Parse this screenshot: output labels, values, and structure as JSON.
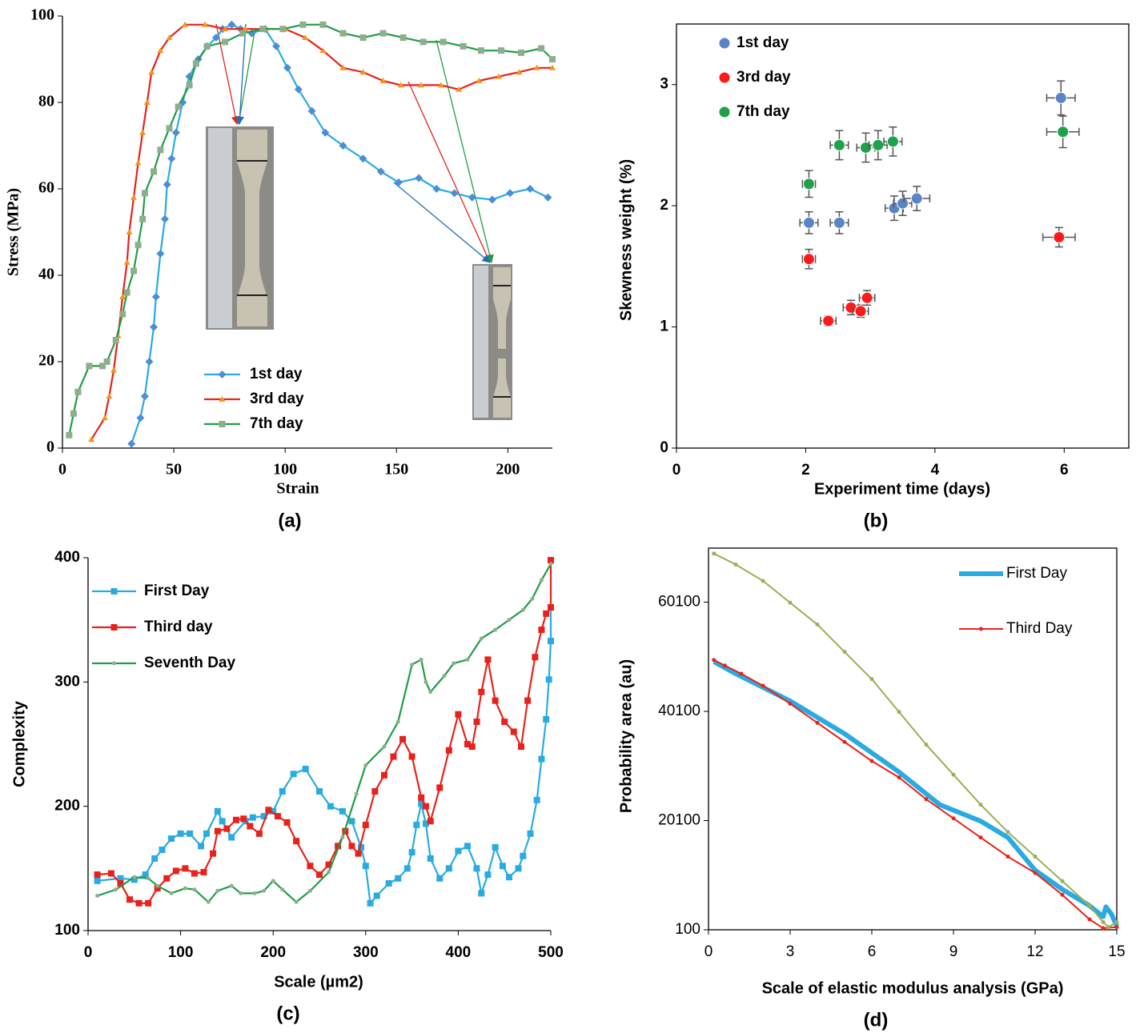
{
  "chart_data": [
    {
      "type": "line",
      "panel_label": "(a)",
      "xlabel": "Strain",
      "ylabel": "Stress (MPa)",
      "xlim": [
        0,
        220
      ],
      "xticks": [
        0,
        50,
        100,
        150,
        200
      ],
      "ylim": [
        0,
        100
      ],
      "yticks": [
        0,
        20,
        40,
        60,
        80,
        100
      ],
      "series": [
        {
          "name": "1st day",
          "color": "#29abe2",
          "marker": "diamond",
          "marker_color": "#4a8fd6",
          "x": [
            31,
            35,
            37,
            39,
            41,
            42,
            44,
            46,
            47,
            49,
            51,
            54,
            57,
            61,
            65,
            69,
            72,
            76,
            80,
            85,
            91,
            96,
            101,
            106,
            112,
            118,
            126,
            135,
            143,
            151,
            160,
            168,
            176,
            184,
            193,
            201,
            210,
            218
          ],
          "values": [
            1,
            7,
            12,
            20,
            28,
            35,
            45,
            53,
            61,
            67,
            73,
            80,
            86,
            90,
            93,
            95,
            97,
            98,
            97,
            96,
            97,
            93,
            88,
            83,
            78,
            73,
            70,
            67,
            64,
            61.5,
            62.5,
            60,
            59,
            58,
            57.5,
            59,
            60,
            58
          ]
        },
        {
          "name": "3rd day",
          "color": "#e8221b",
          "marker": "triangle",
          "marker_color": "#f7941d",
          "x": [
            13,
            19,
            21,
            23,
            25,
            27,
            29,
            30,
            32,
            34,
            36,
            38,
            40,
            44,
            48,
            55,
            64,
            73,
            82,
            91,
            100,
            109,
            117,
            126,
            135,
            144,
            152,
            161,
            170,
            178,
            187,
            196,
            205,
            213,
            220
          ],
          "values": [
            2,
            7,
            12,
            18,
            26,
            35,
            43,
            50,
            58,
            66,
            73,
            80,
            87,
            92,
            95,
            98,
            98,
            97,
            97,
            97,
            97,
            95,
            92,
            88,
            87,
            85,
            84,
            84,
            84,
            83,
            85,
            86,
            87,
            88,
            88
          ]
        },
        {
          "name": "7th day",
          "color": "#1e9e48",
          "marker": "square",
          "marker_color": "#8fae8c",
          "x": [
            3,
            5,
            7,
            12,
            18,
            20,
            24,
            27,
            29,
            32,
            34,
            36,
            37,
            41,
            44,
            48,
            52,
            57,
            60,
            65,
            73,
            81,
            90,
            99,
            108,
            117,
            126,
            135,
            144,
            153,
            162,
            171,
            180,
            188,
            197,
            206,
            215,
            220
          ],
          "values": [
            3,
            8,
            13,
            19,
            19,
            20,
            25,
            31,
            36,
            41,
            47,
            53,
            59,
            64,
            69,
            74,
            79,
            84,
            89,
            93,
            94,
            96,
            97,
            97,
            98,
            98,
            96,
            95,
            96,
            95,
            94,
            94,
            93,
            92,
            92,
            91.5,
            92.5,
            90
          ]
        }
      ]
    },
    {
      "type": "scatter",
      "panel_label": "(b)",
      "xlabel": "Experiment time (days)",
      "ylabel": "Skewness weight (%)",
      "xlim": [
        0,
        7
      ],
      "xticks": [
        0,
        2,
        4,
        6
      ],
      "ylim": [
        0,
        3.5
      ],
      "yticks": [
        0,
        1,
        2,
        3
      ],
      "series": [
        {
          "name": "1st day",
          "color": "#5b84c4",
          "x": [
            2.05,
            2.52,
            3.37,
            3.5,
            3.72,
            5.95
          ],
          "values": [
            1.86,
            1.86,
            1.98,
            2.02,
            2.06,
            2.89
          ],
          "xerr": [
            0.14,
            0.14,
            0.14,
            0.14,
            0.2,
            0.22
          ],
          "yerr": [
            0.09,
            0.09,
            0.1,
            0.1,
            0.1,
            0.14
          ]
        },
        {
          "name": "3rd day",
          "color": "#ff1a1a",
          "x": [
            2.05,
            2.35,
            2.7,
            2.85,
            2.95,
            5.92
          ],
          "values": [
            1.56,
            1.05,
            1.16,
            1.13,
            1.24,
            1.74
          ],
          "xerr": [
            0.1,
            0.12,
            0.12,
            0.12,
            0.12,
            0.25
          ],
          "yerr": [
            0.08,
            0.04,
            0.06,
            0.05,
            0.06,
            0.08
          ]
        },
        {
          "name": "7th day",
          "color": "#1ea14a",
          "x": [
            2.05,
            2.52,
            2.93,
            3.12,
            3.35,
            5.98
          ],
          "values": [
            2.18,
            2.5,
            2.48,
            2.5,
            2.53,
            2.61
          ],
          "xerr": [
            0.1,
            0.14,
            0.14,
            0.14,
            0.14,
            0.25
          ],
          "yerr": [
            0.11,
            0.12,
            0.12,
            0.12,
            0.12,
            0.13
          ]
        }
      ]
    },
    {
      "type": "line",
      "panel_label": "(c)",
      "xlabel": "Scale (µm2)",
      "ylabel": "Complexity",
      "xlim": [
        0,
        500
      ],
      "xticks": [
        0,
        100,
        200,
        300,
        400,
        500
      ],
      "ylim": [
        100,
        400
      ],
      "yticks": [
        100,
        200,
        300,
        400
      ],
      "series": [
        {
          "name": "First Day",
          "color": "#29abe2",
          "marker": "square",
          "marker_color": "#29abe2",
          "x": [
            10,
            35,
            50,
            62,
            72,
            80,
            90,
            100,
            110,
            122,
            128,
            140,
            145,
            155,
            170,
            178,
            190,
            200,
            210,
            222,
            235,
            250,
            262,
            275,
            285,
            295,
            300,
            305,
            312,
            325,
            335,
            345,
            350,
            355,
            360,
            365,
            370,
            380,
            390,
            400,
            410,
            420,
            425,
            432,
            440,
            448,
            455,
            465,
            470,
            478,
            485,
            490,
            495,
            498,
            500,
            500
          ],
          "values": [
            140,
            142,
            141,
            145,
            158,
            165,
            174,
            178,
            178,
            168,
            178,
            196,
            188,
            175,
            188,
            191,
            192,
            196,
            212,
            226,
            230,
            212,
            200,
            196,
            188,
            167,
            152,
            122,
            128,
            138,
            142,
            150,
            163,
            185,
            202,
            186,
            158,
            142,
            150,
            164,
            168,
            150,
            130,
            145,
            167,
            152,
            143,
            150,
            160,
            178,
            205,
            238,
            270,
            302,
            333,
            360
          ]
        },
        {
          "name": "Third day",
          "color": "#e8221b",
          "marker": "square",
          "marker_color": "#e8221b",
          "x": [
            10,
            25,
            35,
            45,
            55,
            65,
            75,
            85,
            95,
            105,
            115,
            125,
            135,
            140,
            150,
            160,
            168,
            175,
            185,
            195,
            205,
            215,
            225,
            240,
            250,
            260,
            270,
            278,
            285,
            292,
            300,
            310,
            320,
            330,
            340,
            350,
            360,
            365,
            370,
            380,
            390,
            400,
            410,
            415,
            420,
            425,
            432,
            440,
            450,
            460,
            468,
            475,
            483,
            490,
            495,
            500,
            500
          ],
          "values": [
            145,
            146,
            138,
            125,
            122,
            122,
            134,
            142,
            148,
            150,
            146,
            147,
            162,
            180,
            182,
            189,
            190,
            184,
            178,
            197,
            192,
            187,
            172,
            152,
            145,
            153,
            168,
            180,
            168,
            162,
            185,
            212,
            225,
            240,
            254,
            240,
            207,
            200,
            188,
            215,
            245,
            274,
            250,
            248,
            268,
            292,
            318,
            285,
            268,
            260,
            248,
            285,
            320,
            342,
            355,
            360,
            398
          ]
        },
        {
          "name": "Seventh Day",
          "color": "#1e9e48",
          "marker": "dot",
          "marker_color": "#8fae8c",
          "x": [
            10,
            30,
            50,
            65,
            75,
            90,
            105,
            115,
            130,
            140,
            155,
            165,
            180,
            190,
            200,
            210,
            225,
            240,
            260,
            275,
            290,
            300,
            320,
            335,
            350,
            360,
            365,
            370,
            385,
            395,
            410,
            425,
            440,
            455,
            470,
            480,
            490,
            500
          ],
          "values": [
            128,
            133,
            143,
            142,
            136,
            130,
            134,
            133,
            123,
            132,
            136,
            130,
            130,
            132,
            140,
            133,
            123,
            132,
            147,
            175,
            210,
            233,
            248,
            268,
            314,
            318,
            300,
            292,
            305,
            315,
            318,
            335,
            342,
            350,
            358,
            367,
            382,
            395
          ]
        }
      ]
    },
    {
      "type": "line",
      "panel_label": "(d)",
      "xlabel": "Scale of elastic modulus analysis (GPa)",
      "ylabel": "Probability area (au)",
      "xlim": [
        0,
        15
      ],
      "xticks": [
        0,
        3,
        6,
        9,
        12,
        15
      ],
      "ylim": [
        100,
        70000
      ],
      "yticks": [
        100,
        20100,
        40100,
        60100
      ],
      "series": [
        {
          "name": "First Day",
          "color": "#29abe2",
          "marker": "none",
          "line_width": 6,
          "x": [
            0.2,
            1,
            2,
            3,
            4,
            5,
            6,
            7,
            8,
            8.5,
            9,
            10,
            10.5,
            11,
            11.5,
            12,
            13,
            14,
            14.5,
            14.6,
            14.8,
            15
          ],
          "values": [
            49200,
            47000,
            44500,
            42000,
            39000,
            36000,
            32500,
            29000,
            25000,
            23000,
            22000,
            20000,
            18500,
            17000,
            14000,
            11000,
            7500,
            4500,
            2500,
            4300,
            3000,
            800
          ]
        },
        {
          "name": "Third Day",
          "color": "#e8221b",
          "marker": "dot",
          "marker_color": "#e8221b",
          "line_width": 2,
          "x": [
            0.2,
            0.6,
            1.2,
            2,
            3,
            4,
            5,
            6,
            7,
            8,
            9,
            10,
            11,
            12,
            13,
            14,
            14.5,
            15
          ],
          "values": [
            49500,
            48500,
            47000,
            44800,
            41500,
            38000,
            34500,
            31000,
            28000,
            24000,
            20500,
            17000,
            13500,
            10500,
            6500,
            2000,
            400,
            600
          ]
        },
        {
          "color": "#9baf55",
          "marker": "dot",
          "marker_color": "#9baf55",
          "line_width": 2,
          "x": [
            0.2,
            1,
            2,
            3,
            4,
            5,
            6,
            7,
            8,
            9,
            10,
            11,
            12,
            13,
            14,
            14.5,
            14.7,
            15
          ],
          "values": [
            69000,
            67000,
            64000,
            60000,
            56000,
            51000,
            46000,
            40000,
            34000,
            28500,
            23000,
            18000,
            13500,
            9000,
            4500,
            1500,
            600,
            1500
          ]
        }
      ]
    }
  ]
}
